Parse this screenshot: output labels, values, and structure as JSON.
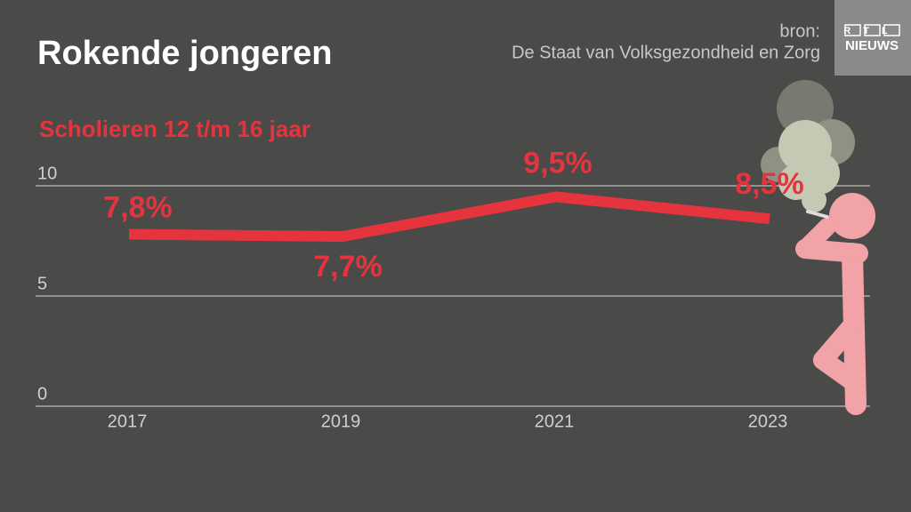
{
  "chart_data": {
    "type": "line",
    "title": "Rokende jongeren",
    "subtitle": "Scholieren 12 t/m 16 jaar",
    "source_label": "bron:",
    "source": "De Staat van Volksgezondheid en Zorg",
    "logo": {
      "top": "RTL",
      "bottom": "NIEUWS"
    },
    "categories": [
      "2017",
      "2019",
      "2021",
      "2023"
    ],
    "values": [
      7.8,
      7.7,
      9.5,
      8.5
    ],
    "value_labels": [
      "7,8%",
      "7,7%",
      "9,5%",
      "8,5%"
    ],
    "color": "#e5343d",
    "ylim": [
      0,
      10
    ],
    "yticks": [
      0,
      5,
      10
    ],
    "grid": true
  }
}
